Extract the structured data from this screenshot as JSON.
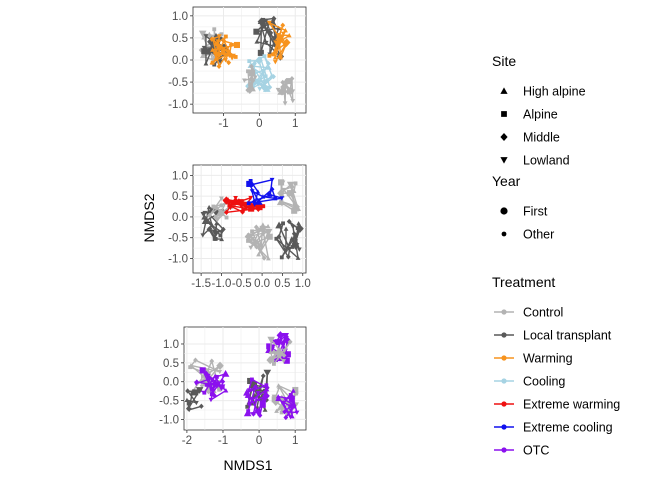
{
  "chart_data": {
    "type": "scatter",
    "xlabel": "NMDS1",
    "ylabel": "NMDS2",
    "panels": [
      {
        "xticks": [
          -1,
          0,
          1
        ],
        "yticks": [
          -1.0,
          -0.5,
          0.0,
          0.5,
          1.0
        ],
        "xlim": [
          -1.85,
          1.3
        ],
        "ylim": [
          -1.2,
          1.2
        ]
      },
      {
        "xticks": [
          -1.5,
          -1.0,
          -0.5,
          0.0,
          0.5,
          1.0
        ],
        "yticks": [
          -1.0,
          -0.5,
          0.0,
          0.5,
          1.0
        ],
        "xlim": [
          -1.7,
          1.08
        ],
        "ylim": [
          -1.35,
          1.25
        ]
      },
      {
        "xticks": [
          -2,
          -1,
          0,
          1
        ],
        "yticks": [
          -1.0,
          -0.5,
          0.0,
          0.5,
          1.0
        ],
        "xlim": [
          -2.08,
          1.3
        ],
        "ylim": [
          -1.28,
          1.45
        ]
      }
    ],
    "legend": {
      "position": "right",
      "site": {
        "title": "Site",
        "items": [
          {
            "label": "High alpine",
            "shape": "triangle-up"
          },
          {
            "label": "Alpine",
            "shape": "square"
          },
          {
            "label": "Middle",
            "shape": "diamond"
          },
          {
            "label": "Lowland",
            "shape": "triangle-down"
          }
        ]
      },
      "year": {
        "title": "Year",
        "items": [
          {
            "label": "First",
            "size": "large"
          },
          {
            "label": "Other",
            "size": "small"
          }
        ]
      },
      "treatment": {
        "title": "Treatment",
        "items": [
          {
            "label": "Control",
            "color": "#b3b3b3"
          },
          {
            "label": "Local transplant",
            "color": "#595959"
          },
          {
            "label": "Warming",
            "color": "#f7931e"
          },
          {
            "label": "Cooling",
            "color": "#a6d3e3"
          },
          {
            "label": "Extreme warming",
            "color": "#ee1111"
          },
          {
            "label": "Extreme cooling",
            "color": "#1111ee"
          },
          {
            "label": "OTC",
            "color": "#8b11ee"
          }
        ]
      }
    }
  }
}
